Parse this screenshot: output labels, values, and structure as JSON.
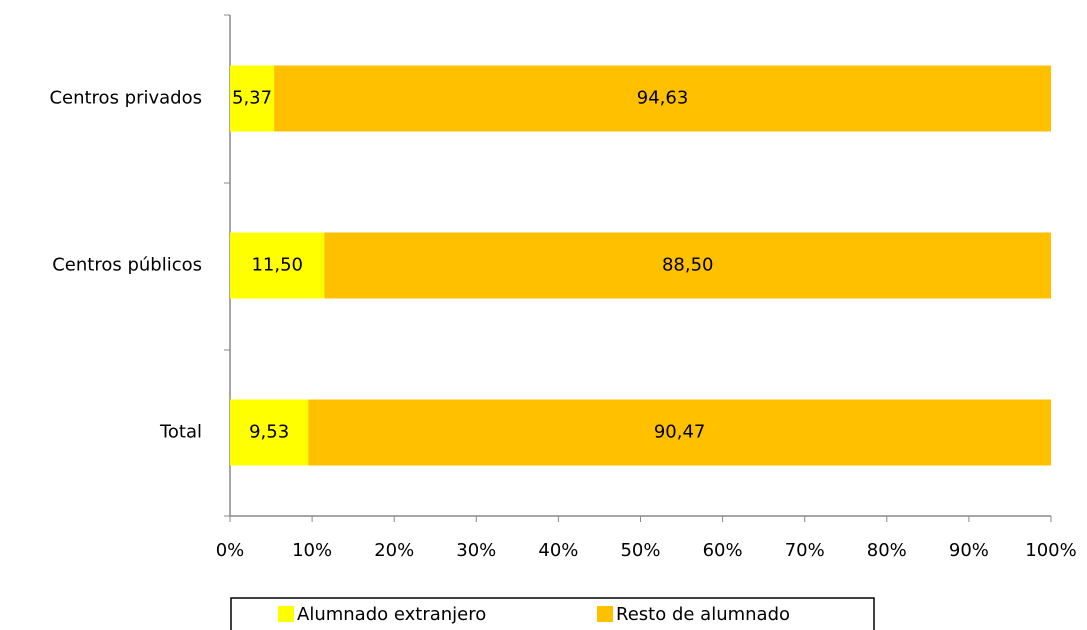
{
  "chart_data": {
    "type": "stacked-bar-horizontal",
    "categories": [
      "Centros privados",
      "Centros públicos",
      "Total"
    ],
    "series": [
      {
        "name": "Alumnado extranjero",
        "color": "#ffff00",
        "values": [
          5.37,
          11.5,
          9.53
        ],
        "value_labels": [
          "5,37",
          "11,50",
          "9,53"
        ]
      },
      {
        "name": "Resto de alumnado",
        "color": "#ffc000",
        "values": [
          94.63,
          88.5,
          90.47
        ],
        "value_labels": [
          "94,63",
          "88,50",
          "90,47"
        ]
      }
    ],
    "xlim": [
      0,
      100
    ],
    "xticks": [
      {
        "value": 0,
        "label": "0%"
      },
      {
        "value": 10,
        "label": "10%"
      },
      {
        "value": 20,
        "label": "20%"
      },
      {
        "value": 30,
        "label": "30%"
      },
      {
        "value": 40,
        "label": "40%"
      },
      {
        "value": 50,
        "label": "50%"
      },
      {
        "value": 60,
        "label": "60%"
      },
      {
        "value": 70,
        "label": "70%"
      },
      {
        "value": 80,
        "label": "80%"
      },
      {
        "value": 90,
        "label": "90%"
      },
      {
        "value": 100,
        "label": "100%"
      }
    ],
    "legend": "bottom"
  }
}
